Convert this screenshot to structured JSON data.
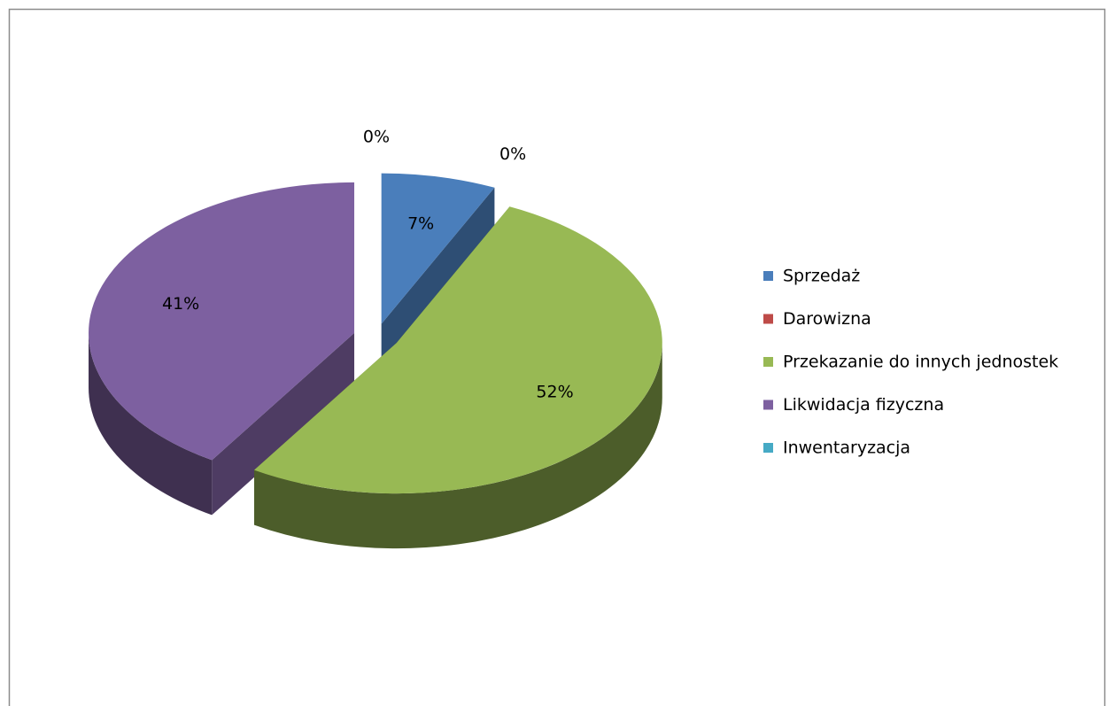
{
  "chart_data": {
    "type": "pie",
    "categories": [
      "Sprzedaż",
      "Darowizna",
      "Przekazanie do innych jednostek",
      "Likwidacja fizyczna",
      "Inwentaryzacja"
    ],
    "values": [
      7,
      0,
      52,
      41,
      0
    ],
    "value_labels": [
      "7%",
      "0%",
      "52%",
      "41%",
      "0%"
    ],
    "colors": [
      "#4a7ebb",
      "#be4b48",
      "#98b954",
      "#7d60a0",
      "#46aac5"
    ],
    "legend": "right"
  }
}
